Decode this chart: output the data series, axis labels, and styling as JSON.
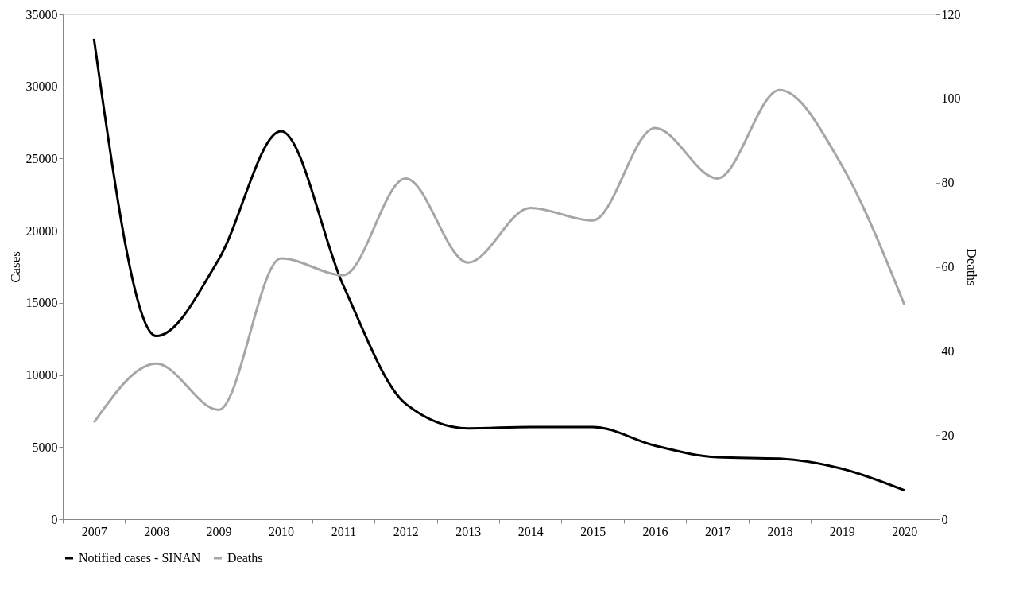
{
  "chart_data": {
    "type": "line",
    "categories": [
      "2007",
      "2008",
      "2009",
      "2010",
      "2011",
      "2012",
      "2013",
      "2014",
      "2015",
      "2016",
      "2017",
      "2018",
      "2019",
      "2020"
    ],
    "series": [
      {
        "name": "Notified cases - SINAN",
        "color": "#000000",
        "values": [
          33300,
          12700,
          18000,
          26900,
          16200,
          8000,
          6300,
          6400,
          6400,
          5100,
          4300,
          4200,
          3500,
          2000
        ]
      },
      {
        "name": "Deaths",
        "color": "#a6a6a6",
        "axis": "y2",
        "values": [
          23,
          37,
          26,
          62,
          58,
          81,
          61,
          74,
          71,
          93,
          81,
          102,
          84,
          51
        ]
      }
    ],
    "ylabel": "Cases",
    "y2label": "Deaths",
    "ylim": [
      0,
      35000
    ],
    "yticks": [
      0,
      5000,
      10000,
      15000,
      20000,
      25000,
      30000,
      35000
    ],
    "y2lim": [
      0,
      120
    ],
    "y2ticks": [
      0,
      20,
      40,
      60,
      80,
      100,
      120
    ],
    "legend": "bottom",
    "grid": false,
    "marker": "none",
    "line_style": "solid"
  }
}
